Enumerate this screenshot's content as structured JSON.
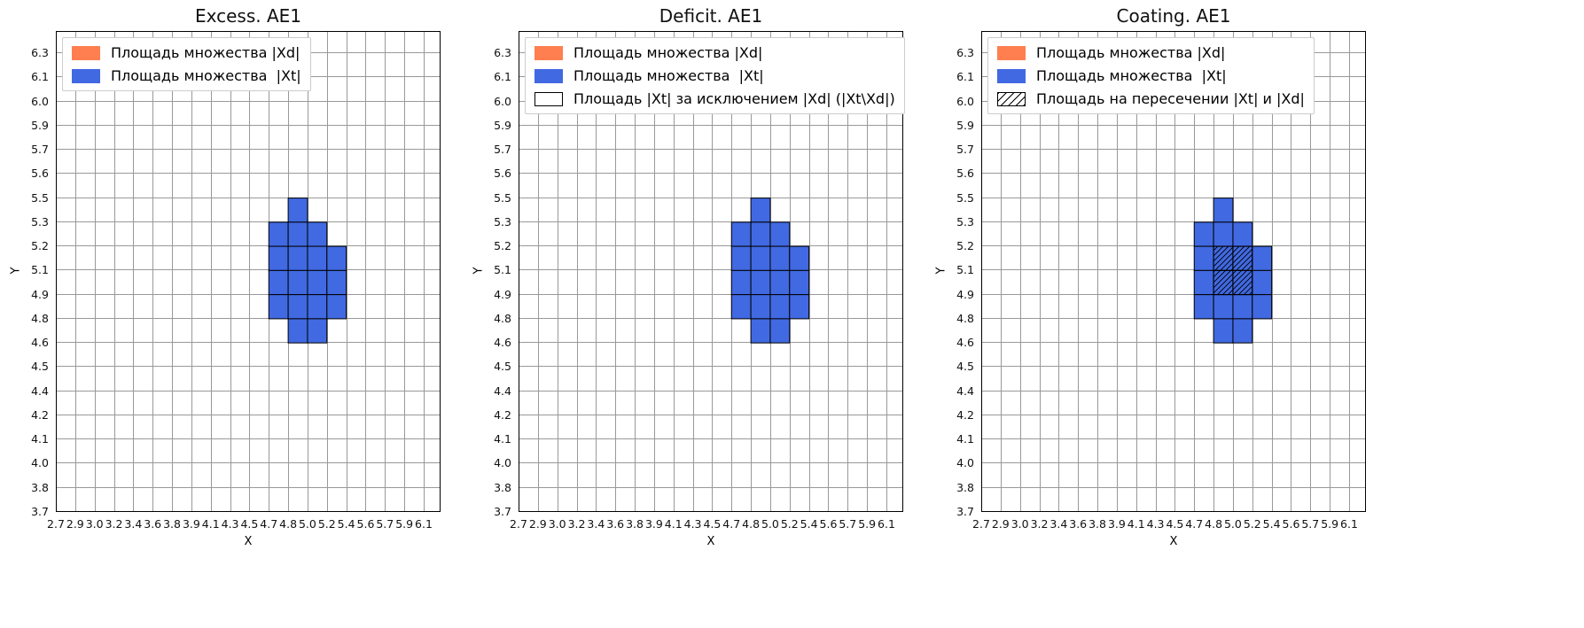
{
  "figure": {
    "background": "#ffffff"
  },
  "chart_data": [
    {
      "type": "heatmap",
      "title": "Excess. AE1",
      "xlabel": "X",
      "ylabel": "Y",
      "grid": true,
      "legend_position": "upper-left",
      "x_ticks": [
        "2.7",
        "2.9",
        "3.0",
        "3.2",
        "3.4",
        "3.6",
        "3.8",
        "3.9",
        "4.1",
        "4.3",
        "4.5",
        "4.7",
        "4.8",
        "5.0",
        "5.2",
        "5.4",
        "5.6",
        "5.7",
        "5.9",
        "6.1"
      ],
      "y_ticks": [
        "3.7",
        "3.8",
        "4.0",
        "4.1",
        "4.2",
        "4.4",
        "4.5",
        "4.6",
        "4.8",
        "4.9",
        "5.1",
        "5.2",
        "5.3",
        "5.5",
        "5.6",
        "5.7",
        "5.9",
        "6.0",
        "6.1",
        "6.3"
      ],
      "cell_color": "#4169e1",
      "legend": [
        {
          "label": "Площадь множества |Xd|",
          "swatch": "solid",
          "color": "#ff7f50"
        },
        {
          "label": "Площадь множества  |Xt|",
          "swatch": "solid",
          "color": "#4169e1"
        }
      ],
      "xt_cells": [
        {
          "x": "4.8",
          "y": "5.3"
        },
        {
          "x": "4.7",
          "y": "5.2"
        },
        {
          "x": "4.8",
          "y": "5.2"
        },
        {
          "x": "5.0",
          "y": "5.2"
        },
        {
          "x": "4.7",
          "y": "5.1"
        },
        {
          "x": "4.8",
          "y": "5.1"
        },
        {
          "x": "5.0",
          "y": "5.1"
        },
        {
          "x": "5.2",
          "y": "5.1"
        },
        {
          "x": "4.7",
          "y": "4.9"
        },
        {
          "x": "4.8",
          "y": "4.9"
        },
        {
          "x": "5.0",
          "y": "4.9"
        },
        {
          "x": "5.2",
          "y": "4.9"
        },
        {
          "x": "4.7",
          "y": "4.8"
        },
        {
          "x": "4.8",
          "y": "4.8"
        },
        {
          "x": "5.0",
          "y": "4.8"
        },
        {
          "x": "5.2",
          "y": "4.8"
        },
        {
          "x": "4.8",
          "y": "4.6"
        },
        {
          "x": "5.0",
          "y": "4.6"
        }
      ],
      "hatched_cells": []
    },
    {
      "type": "heatmap",
      "title": "Deficit. AE1",
      "xlabel": "X",
      "ylabel": "Y",
      "grid": true,
      "legend_position": "upper-left",
      "x_ticks": [
        "2.7",
        "2.9",
        "3.0",
        "3.2",
        "3.4",
        "3.6",
        "3.8",
        "3.9",
        "4.1",
        "4.3",
        "4.5",
        "4.7",
        "4.8",
        "5.0",
        "5.2",
        "5.4",
        "5.6",
        "5.7",
        "5.9",
        "6.1"
      ],
      "y_ticks": [
        "3.7",
        "3.8",
        "4.0",
        "4.1",
        "4.2",
        "4.4",
        "4.5",
        "4.6",
        "4.8",
        "4.9",
        "5.1",
        "5.2",
        "5.3",
        "5.5",
        "5.6",
        "5.7",
        "5.9",
        "6.0",
        "6.1",
        "6.3"
      ],
      "cell_color": "#4169e1",
      "legend": [
        {
          "label": "Площадь множества |Xd|",
          "swatch": "solid",
          "color": "#ff7f50"
        },
        {
          "label": "Площадь множества  |Xt|",
          "swatch": "solid",
          "color": "#4169e1"
        },
        {
          "label": "Площадь |Xt| за исключением |Xd| (|Xt\\Xd|)",
          "swatch": "empty",
          "color": "#ffffff"
        }
      ],
      "xt_cells": [
        {
          "x": "4.8",
          "y": "5.3"
        },
        {
          "x": "4.7",
          "y": "5.2"
        },
        {
          "x": "4.8",
          "y": "5.2"
        },
        {
          "x": "5.0",
          "y": "5.2"
        },
        {
          "x": "4.7",
          "y": "5.1"
        },
        {
          "x": "4.8",
          "y": "5.1"
        },
        {
          "x": "5.0",
          "y": "5.1"
        },
        {
          "x": "5.2",
          "y": "5.1"
        },
        {
          "x": "4.7",
          "y": "4.9"
        },
        {
          "x": "4.8",
          "y": "4.9"
        },
        {
          "x": "5.0",
          "y": "4.9"
        },
        {
          "x": "5.2",
          "y": "4.9"
        },
        {
          "x": "4.7",
          "y": "4.8"
        },
        {
          "x": "4.8",
          "y": "4.8"
        },
        {
          "x": "5.0",
          "y": "4.8"
        },
        {
          "x": "5.2",
          "y": "4.8"
        },
        {
          "x": "4.8",
          "y": "4.6"
        },
        {
          "x": "5.0",
          "y": "4.6"
        }
      ],
      "hatched_cells": []
    },
    {
      "type": "heatmap",
      "title": "Coating. AE1",
      "xlabel": "X",
      "ylabel": "Y",
      "grid": true,
      "legend_position": "upper-left",
      "x_ticks": [
        "2.7",
        "2.9",
        "3.0",
        "3.2",
        "3.4",
        "3.6",
        "3.8",
        "3.9",
        "4.1",
        "4.3",
        "4.5",
        "4.7",
        "4.8",
        "5.0",
        "5.2",
        "5.4",
        "5.6",
        "5.7",
        "5.9",
        "6.1"
      ],
      "y_ticks": [
        "3.7",
        "3.8",
        "4.0",
        "4.1",
        "4.2",
        "4.4",
        "4.5",
        "4.6",
        "4.8",
        "4.9",
        "5.1",
        "5.2",
        "5.3",
        "5.5",
        "5.6",
        "5.7",
        "5.9",
        "6.0",
        "6.1",
        "6.3"
      ],
      "cell_color": "#4169e1",
      "legend": [
        {
          "label": "Площадь множества |Xd|",
          "swatch": "solid",
          "color": "#ff7f50"
        },
        {
          "label": "Площадь множества  |Xt|",
          "swatch": "solid",
          "color": "#4169e1"
        },
        {
          "label": "Площадь на пересечении |Xt| и |Xd|",
          "swatch": "hatch",
          "color": "#ffffff"
        }
      ],
      "xt_cells": [
        {
          "x": "4.8",
          "y": "5.3"
        },
        {
          "x": "4.7",
          "y": "5.2"
        },
        {
          "x": "4.8",
          "y": "5.2"
        },
        {
          "x": "5.0",
          "y": "5.2"
        },
        {
          "x": "4.7",
          "y": "5.1"
        },
        {
          "x": "4.8",
          "y": "5.1"
        },
        {
          "x": "5.0",
          "y": "5.1"
        },
        {
          "x": "5.2",
          "y": "5.1"
        },
        {
          "x": "4.7",
          "y": "4.9"
        },
        {
          "x": "4.8",
          "y": "4.9"
        },
        {
          "x": "5.0",
          "y": "4.9"
        },
        {
          "x": "5.2",
          "y": "4.9"
        },
        {
          "x": "4.7",
          "y": "4.8"
        },
        {
          "x": "4.8",
          "y": "4.8"
        },
        {
          "x": "5.0",
          "y": "4.8"
        },
        {
          "x": "5.2",
          "y": "4.8"
        },
        {
          "x": "4.8",
          "y": "4.6"
        },
        {
          "x": "5.0",
          "y": "4.6"
        }
      ],
      "hatched_cells": [
        {
          "x": "4.8",
          "y": "5.1"
        },
        {
          "x": "5.0",
          "y": "5.1"
        },
        {
          "x": "4.8",
          "y": "4.9"
        },
        {
          "x": "5.0",
          "y": "4.9"
        }
      ]
    }
  ]
}
